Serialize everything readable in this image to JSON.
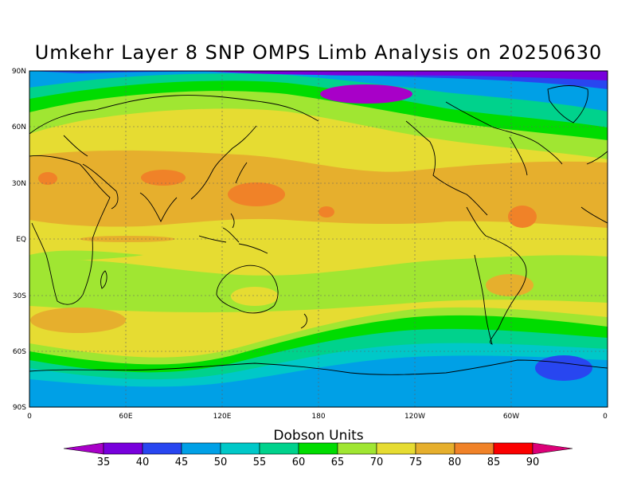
{
  "title": "Umkehr Layer 8 SNP OMPS Limb Analysis on 20250630",
  "lat_labels": [
    "90N",
    "60N",
    "30N",
    "EQ",
    "30S",
    "60S",
    "90S"
  ],
  "lon_labels": [
    "0",
    "60E",
    "120E",
    "180",
    "120W",
    "60W",
    "0"
  ],
  "colorbar": {
    "title": "Dobson Units",
    "levels": [
      "35",
      "40",
      "45",
      "50",
      "55",
      "60",
      "65",
      "70",
      "75",
      "80",
      "85",
      "90"
    ],
    "colors": [
      "#a800c8",
      "#7800dc",
      "#2846f0",
      "#00a0e6",
      "#00c8c8",
      "#00d28c",
      "#00dc00",
      "#a0e632",
      "#e6dc32",
      "#e6af2d",
      "#f08228",
      "#fa0000",
      "#dc0078"
    ]
  }
}
